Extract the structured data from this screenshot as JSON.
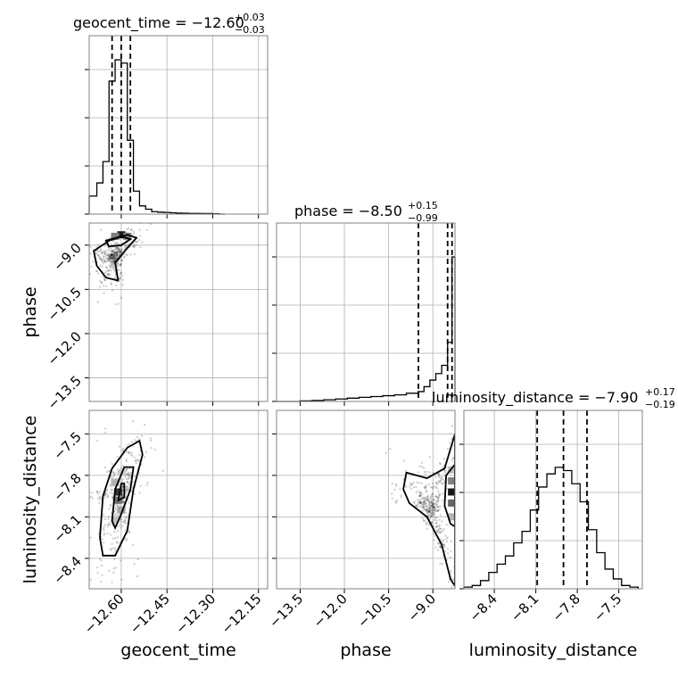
{
  "chart_data": {
    "type": "corner",
    "parameters": [
      "geocent_time",
      "phase",
      "luminosity_distance"
    ],
    "titles": [
      {
        "param": "geocent_time",
        "text": "geocent_time = −12.60",
        "sup": "+0.03",
        "sub": "−0.03"
      },
      {
        "param": "phase",
        "text": "phase = −8.50",
        "sup": "+0.15",
        "sub": "−0.99"
      },
      {
        "param": "luminosity_distance",
        "text": "luminosity_distance = −7.90",
        "sup": "+0.17",
        "sub": "−0.19"
      }
    ],
    "axes": {
      "geocent_time": {
        "range": [
          -12.705,
          -12.12
        ],
        "ticks": [
          -12.6,
          -12.45,
          -12.3,
          -12.15
        ],
        "tick_labels": [
          "−12.60",
          "−12.45",
          "−12.30",
          "−12.15"
        ],
        "label": "geocent_time"
      },
      "phase": {
        "range": [
          -14.3,
          -8.25
        ],
        "ticks": [
          -13.5,
          -12.0,
          -10.5,
          -9.0
        ],
        "tick_labels": [
          "−13.5",
          "−12.0",
          "−10.5",
          "−9.0"
        ],
        "label": "phase"
      },
      "luminosity_distance": {
        "range": [
          -8.62,
          -7.33
        ],
        "ticks": [
          -8.4,
          -8.1,
          -7.8,
          -7.5
        ],
        "tick_labels": [
          "−8.4",
          "−8.1",
          "−7.8",
          "−7.5"
        ],
        "label": "luminosity_distance"
      }
    },
    "quantiles": {
      "geocent_time": [
        -12.63,
        -12.6,
        -12.57
      ],
      "phase": [
        -9.49,
        -8.5,
        -8.35
      ],
      "luminosity_distance": [
        -8.09,
        -7.9,
        -7.73
      ]
    },
    "histograms": {
      "geocent_time": {
        "bin_edges": [
          -12.705,
          -12.68,
          -12.66,
          -12.64,
          -12.62,
          -12.6,
          -12.58,
          -12.56,
          -12.54,
          -12.52,
          -12.5,
          -12.48,
          -12.46,
          -12.44,
          -12.42,
          -12.4,
          -12.38,
          -12.36,
          -12.34,
          -12.32,
          -12.3,
          -12.28,
          -12.26
        ],
        "counts": [
          0.11,
          0.19,
          0.32,
          0.81,
          0.94,
          0.92,
          0.45,
          0.14,
          0.05,
          0.03,
          0.015,
          0.012,
          0.01,
          0.008,
          0.006,
          0.005,
          0.004,
          0.004,
          0.003,
          0.003,
          0.002,
          0.0
        ]
      },
      "phase": {
        "bin_edges": [
          -14.3,
          -13.5,
          -13.1,
          -12.7,
          -12.3,
          -11.9,
          -11.5,
          -11.1,
          -10.7,
          -10.3,
          -9.9,
          -9.5,
          -9.3,
          -9.1,
          -8.9,
          -8.7,
          -8.5,
          -8.35,
          -8.25
        ],
        "counts": [
          0.0,
          0.003,
          0.006,
          0.01,
          0.015,
          0.02,
          0.025,
          0.03,
          0.035,
          0.04,
          0.05,
          0.06,
          0.09,
          0.13,
          0.17,
          0.22,
          0.36,
          0.88
        ]
      },
      "luminosity_distance": {
        "bin_edges": [
          -8.62,
          -8.56,
          -8.5,
          -8.44,
          -8.38,
          -8.32,
          -8.26,
          -8.2,
          -8.14,
          -8.08,
          -8.02,
          -7.96,
          -7.9,
          -7.84,
          -7.78,
          -7.72,
          -7.66,
          -7.6,
          -7.54,
          -7.48,
          -7.42,
          -7.36
        ],
        "counts": [
          0.01,
          0.02,
          0.05,
          0.1,
          0.15,
          0.2,
          0.28,
          0.35,
          0.48,
          0.62,
          0.7,
          0.74,
          0.72,
          0.64,
          0.53,
          0.36,
          0.22,
          0.12,
          0.06,
          0.02,
          0.01
        ]
      }
    },
    "contours_2d": [
      {
        "x": "geocent_time",
        "y": "phase",
        "levels": [
          [
            [
              -12.69,
              -9.2
            ],
            [
              -12.64,
              -8.85
            ],
            [
              -12.58,
              -8.65
            ],
            [
              -12.55,
              -8.75
            ],
            [
              -12.58,
              -9.1
            ],
            [
              -12.62,
              -9.6
            ],
            [
              -12.61,
              -10.2
            ],
            [
              -12.65,
              -10.1
            ],
            [
              -12.68,
              -9.7
            ]
          ],
          [
            [
              -12.65,
              -8.85
            ],
            [
              -12.6,
              -8.7
            ],
            [
              -12.57,
              -8.8
            ],
            [
              -12.6,
              -9.0
            ],
            [
              -12.64,
              -9.05
            ]
          ]
        ]
      },
      {
        "x": "geocent_time",
        "y": "luminosity_distance",
        "levels": [
          [
            [
              -12.67,
              -8.25
            ],
            [
              -12.66,
              -7.95
            ],
            [
              -12.63,
              -7.75
            ],
            [
              -12.58,
              -7.6
            ],
            [
              -12.54,
              -7.55
            ],
            [
              -12.53,
              -7.65
            ],
            [
              -12.56,
              -7.9
            ],
            [
              -12.58,
              -8.2
            ],
            [
              -12.62,
              -8.38
            ],
            [
              -12.66,
              -8.38
            ]
          ],
          [
            [
              -12.63,
              -8.13
            ],
            [
              -12.62,
              -7.9
            ],
            [
              -12.59,
              -7.74
            ],
            [
              -12.56,
              -7.74
            ],
            [
              -12.57,
              -7.9
            ],
            [
              -12.6,
              -8.08
            ],
            [
              -12.62,
              -8.18
            ]
          ],
          [
            [
              -12.61,
              -7.98
            ],
            [
              -12.6,
              -7.86
            ],
            [
              -12.59,
              -7.86
            ],
            [
              -12.59,
              -7.96
            ]
          ]
        ]
      },
      {
        "x": "phase",
        "y": "luminosity_distance",
        "levels": [
          [
            [
              -8.25,
              -7.5
            ],
            [
              -8.6,
              -7.75
            ],
            [
              -9.2,
              -7.82
            ],
            [
              -9.9,
              -7.78
            ],
            [
              -10.0,
              -7.9
            ],
            [
              -9.8,
              -8.0
            ],
            [
              -9.2,
              -8.1
            ],
            [
              -8.7,
              -8.3
            ],
            [
              -8.4,
              -8.55
            ],
            [
              -8.25,
              -8.6
            ]
          ],
          [
            [
              -8.25,
              -7.72
            ],
            [
              -8.55,
              -7.8
            ],
            [
              -8.6,
              -8.02
            ],
            [
              -8.4,
              -8.15
            ],
            [
              -8.25,
              -8.17
            ]
          ]
        ]
      }
    ],
    "density_2d": [
      {
        "x": "geocent_time",
        "y": "phase",
        "cells": [
          [
            -12.6,
            -8.65,
            0.9
          ],
          [
            -12.62,
            -8.7,
            0.5
          ],
          [
            -12.58,
            -8.7,
            0.5
          ]
        ]
      },
      {
        "x": "geocent_time",
        "y": "luminosity_distance",
        "cells": [
          [
            -12.61,
            -7.92,
            0.8
          ],
          [
            -12.61,
            -7.98,
            0.55
          ],
          [
            -12.6,
            -8.05,
            0.35
          ],
          [
            -12.62,
            -7.85,
            0.3
          ],
          [
            -12.6,
            -7.78,
            0.2
          ],
          [
            -12.62,
            -8.12,
            0.25
          ]
        ]
      },
      {
        "x": "phase",
        "y": "luminosity_distance",
        "cells": [
          [
            -8.35,
            -7.92,
            0.9
          ],
          [
            -8.35,
            -8.0,
            0.6
          ],
          [
            -8.35,
            -7.84,
            0.5
          ],
          [
            -8.35,
            -8.1,
            0.3
          ],
          [
            -8.35,
            -7.76,
            0.25
          ]
        ]
      }
    ]
  }
}
